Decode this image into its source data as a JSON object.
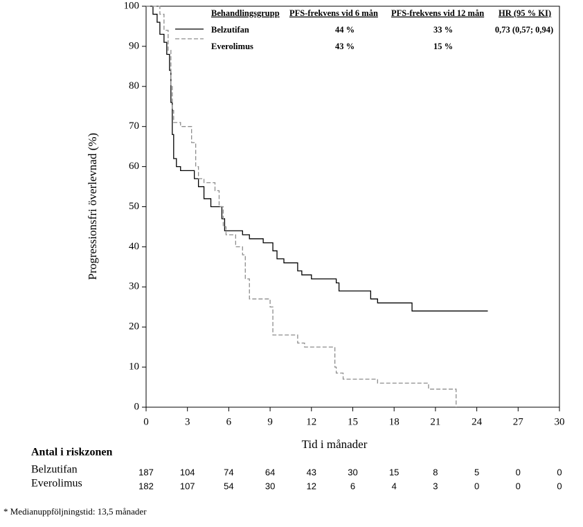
{
  "chart_data": {
    "type": "line",
    "xlabel": "Tid i månader",
    "ylabel": "Progressionsfri överlevnad (%)",
    "xlim": [
      0,
      30
    ],
    "xticks": [
      0,
      3,
      6,
      9,
      12,
      15,
      18,
      21,
      24,
      27,
      30
    ],
    "ylim": [
      0,
      100
    ],
    "yticks": [
      0,
      10,
      20,
      30,
      40,
      50,
      60,
      70,
      80,
      90,
      100
    ],
    "series": [
      {
        "name": "Belzutifan",
        "color": "#000000",
        "dashed": false,
        "x": [
          0,
          0.5,
          0.5,
          0.8,
          0.8,
          1,
          1,
          1.3,
          1.3,
          1.5,
          1.5,
          1.7,
          1.7,
          1.8,
          1.8,
          1.9,
          1.9,
          2,
          2,
          2.2,
          2.2,
          2.5,
          2.5,
          3.5,
          3.5,
          3.8,
          3.8,
          4.2,
          4.2,
          4.7,
          4.7,
          5.5,
          5.5,
          5.7,
          5.7,
          7,
          7,
          7.5,
          7.5,
          8.5,
          8.5,
          9.2,
          9.2,
          9.5,
          9.5,
          10,
          10,
          11,
          11,
          11.3,
          11.3,
          12,
          12,
          13.8,
          13.8,
          14,
          14,
          16.3,
          16.3,
          16.8,
          16.8,
          19.3,
          19.3,
          24.8
        ],
        "values": [
          100,
          100,
          98,
          98,
          96,
          96,
          93,
          93,
          91,
          91,
          88,
          88,
          84,
          84,
          76,
          76,
          68,
          68,
          62,
          62,
          60,
          60,
          59,
          59,
          57,
          57,
          55,
          55,
          52,
          52,
          50,
          50,
          47,
          47,
          44,
          44,
          43,
          43,
          42,
          42,
          41,
          41,
          39,
          39,
          37,
          37,
          36,
          36,
          34,
          34,
          33,
          33,
          32,
          32,
          31,
          31,
          29,
          29,
          27,
          27,
          26,
          26,
          24,
          24
        ]
      },
      {
        "name": "Everolimus",
        "color": "#8c8c8c",
        "dashed": true,
        "x": [
          0,
          1,
          1,
          1.3,
          1.3,
          1.6,
          1.6,
          1.8,
          1.8,
          1.9,
          1.9,
          2,
          2,
          2.5,
          2.5,
          3.3,
          3.3,
          3.6,
          3.6,
          3.8,
          3.8,
          4.2,
          4.2,
          5,
          5,
          5.3,
          5.3,
          5.6,
          5.6,
          5.8,
          5.8,
          6.5,
          6.5,
          7,
          7,
          7.2,
          7.2,
          7.5,
          7.5,
          9,
          9,
          9.2,
          9.2,
          11,
          11,
          11.5,
          11.5,
          13.7,
          13.7,
          13.8,
          13.8,
          14.3,
          14.3,
          16.8,
          16.8,
          20.5,
          20.5,
          22.5,
          22.5
        ],
        "values": [
          100,
          100,
          98,
          98,
          94,
          94,
          89,
          89,
          80,
          80,
          74,
          74,
          71,
          71,
          70,
          70,
          66,
          66,
          60,
          60,
          57,
          57,
          56,
          56,
          54,
          54,
          50,
          50,
          45,
          45,
          43,
          43,
          40,
          40,
          38,
          38,
          32,
          32,
          27,
          27,
          25,
          25,
          18,
          18,
          16,
          16,
          15,
          15,
          10,
          10,
          8.5,
          8.5,
          7,
          7,
          6,
          6,
          4.5,
          4.5,
          0
        ]
      }
    ],
    "legend_table": {
      "columns": [
        "Behandlingsgrupp",
        "PFS-frekvens vid 6 mån",
        "PFS-frekvens vid 12 mån",
        "HR (95 % KI)"
      ],
      "rows": [
        {
          "pfs_6": "44 %",
          "pfs_12": "33 %",
          "hr": "0,73 (0,57; 0,94)"
        },
        {
          "pfs_6": "43 %",
          "pfs_12": "15 %"
        }
      ]
    }
  },
  "risk_table": {
    "title": "Antal i riskzonen",
    "rows": [
      {
        "label": "Belzutifan",
        "counts": [
          "187",
          "104",
          "74",
          "64",
          "43",
          "30",
          "15",
          "8",
          "5",
          "0",
          "0"
        ]
      },
      {
        "label": "Everolimus",
        "counts": [
          "182",
          "107",
          "54",
          "30",
          "12",
          "6",
          "4",
          "3",
          "0",
          "0",
          "0"
        ]
      }
    ]
  },
  "footnote": "* Medianuppföljningstid: 13,5 månader"
}
